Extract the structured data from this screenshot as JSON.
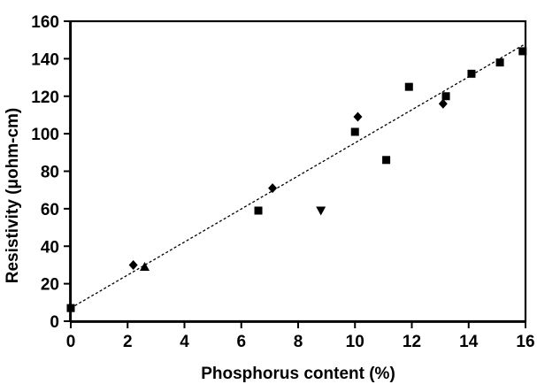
{
  "figure": {
    "background_color": "#ffffff",
    "ink_color": "#000000"
  },
  "chart_data": {
    "type": "scatter",
    "title": "",
    "xlabel": "Phosphorus content (%)",
    "ylabel": "Resistivity (μohm-cm)",
    "xlim": [
      0,
      16
    ],
    "ylim": [
      0,
      160
    ],
    "xticks": [
      0,
      2,
      4,
      6,
      8,
      10,
      12,
      14,
      16
    ],
    "yticks": [
      0,
      20,
      40,
      60,
      80,
      100,
      120,
      140,
      160
    ],
    "grid": false,
    "legend": "none",
    "series": [
      {
        "name": "square-markers",
        "marker": "square",
        "color": "#000000",
        "points": [
          [
            0,
            7
          ],
          [
            6.6,
            59
          ],
          [
            10.0,
            101
          ],
          [
            11.1,
            86
          ],
          [
            11.9,
            125
          ],
          [
            13.2,
            120
          ],
          [
            14.1,
            132
          ],
          [
            15.1,
            138
          ],
          [
            15.9,
            144
          ]
        ]
      },
      {
        "name": "diamond-markers",
        "marker": "diamond",
        "color": "#000000",
        "points": [
          [
            2.2,
            30
          ],
          [
            7.1,
            71
          ],
          [
            10.1,
            109
          ],
          [
            13.1,
            116
          ]
        ]
      },
      {
        "name": "triangle-up-markers",
        "marker": "triangle-up",
        "color": "#000000",
        "points": [
          [
            2.6,
            29
          ]
        ]
      },
      {
        "name": "triangle-down-markers",
        "marker": "triangle-down",
        "color": "#000000",
        "points": [
          [
            8.8,
            59
          ]
        ]
      }
    ],
    "trend_line": {
      "style": "dotted",
      "color": "#000000",
      "from": [
        0,
        7
      ],
      "to": [
        16,
        148
      ]
    }
  }
}
